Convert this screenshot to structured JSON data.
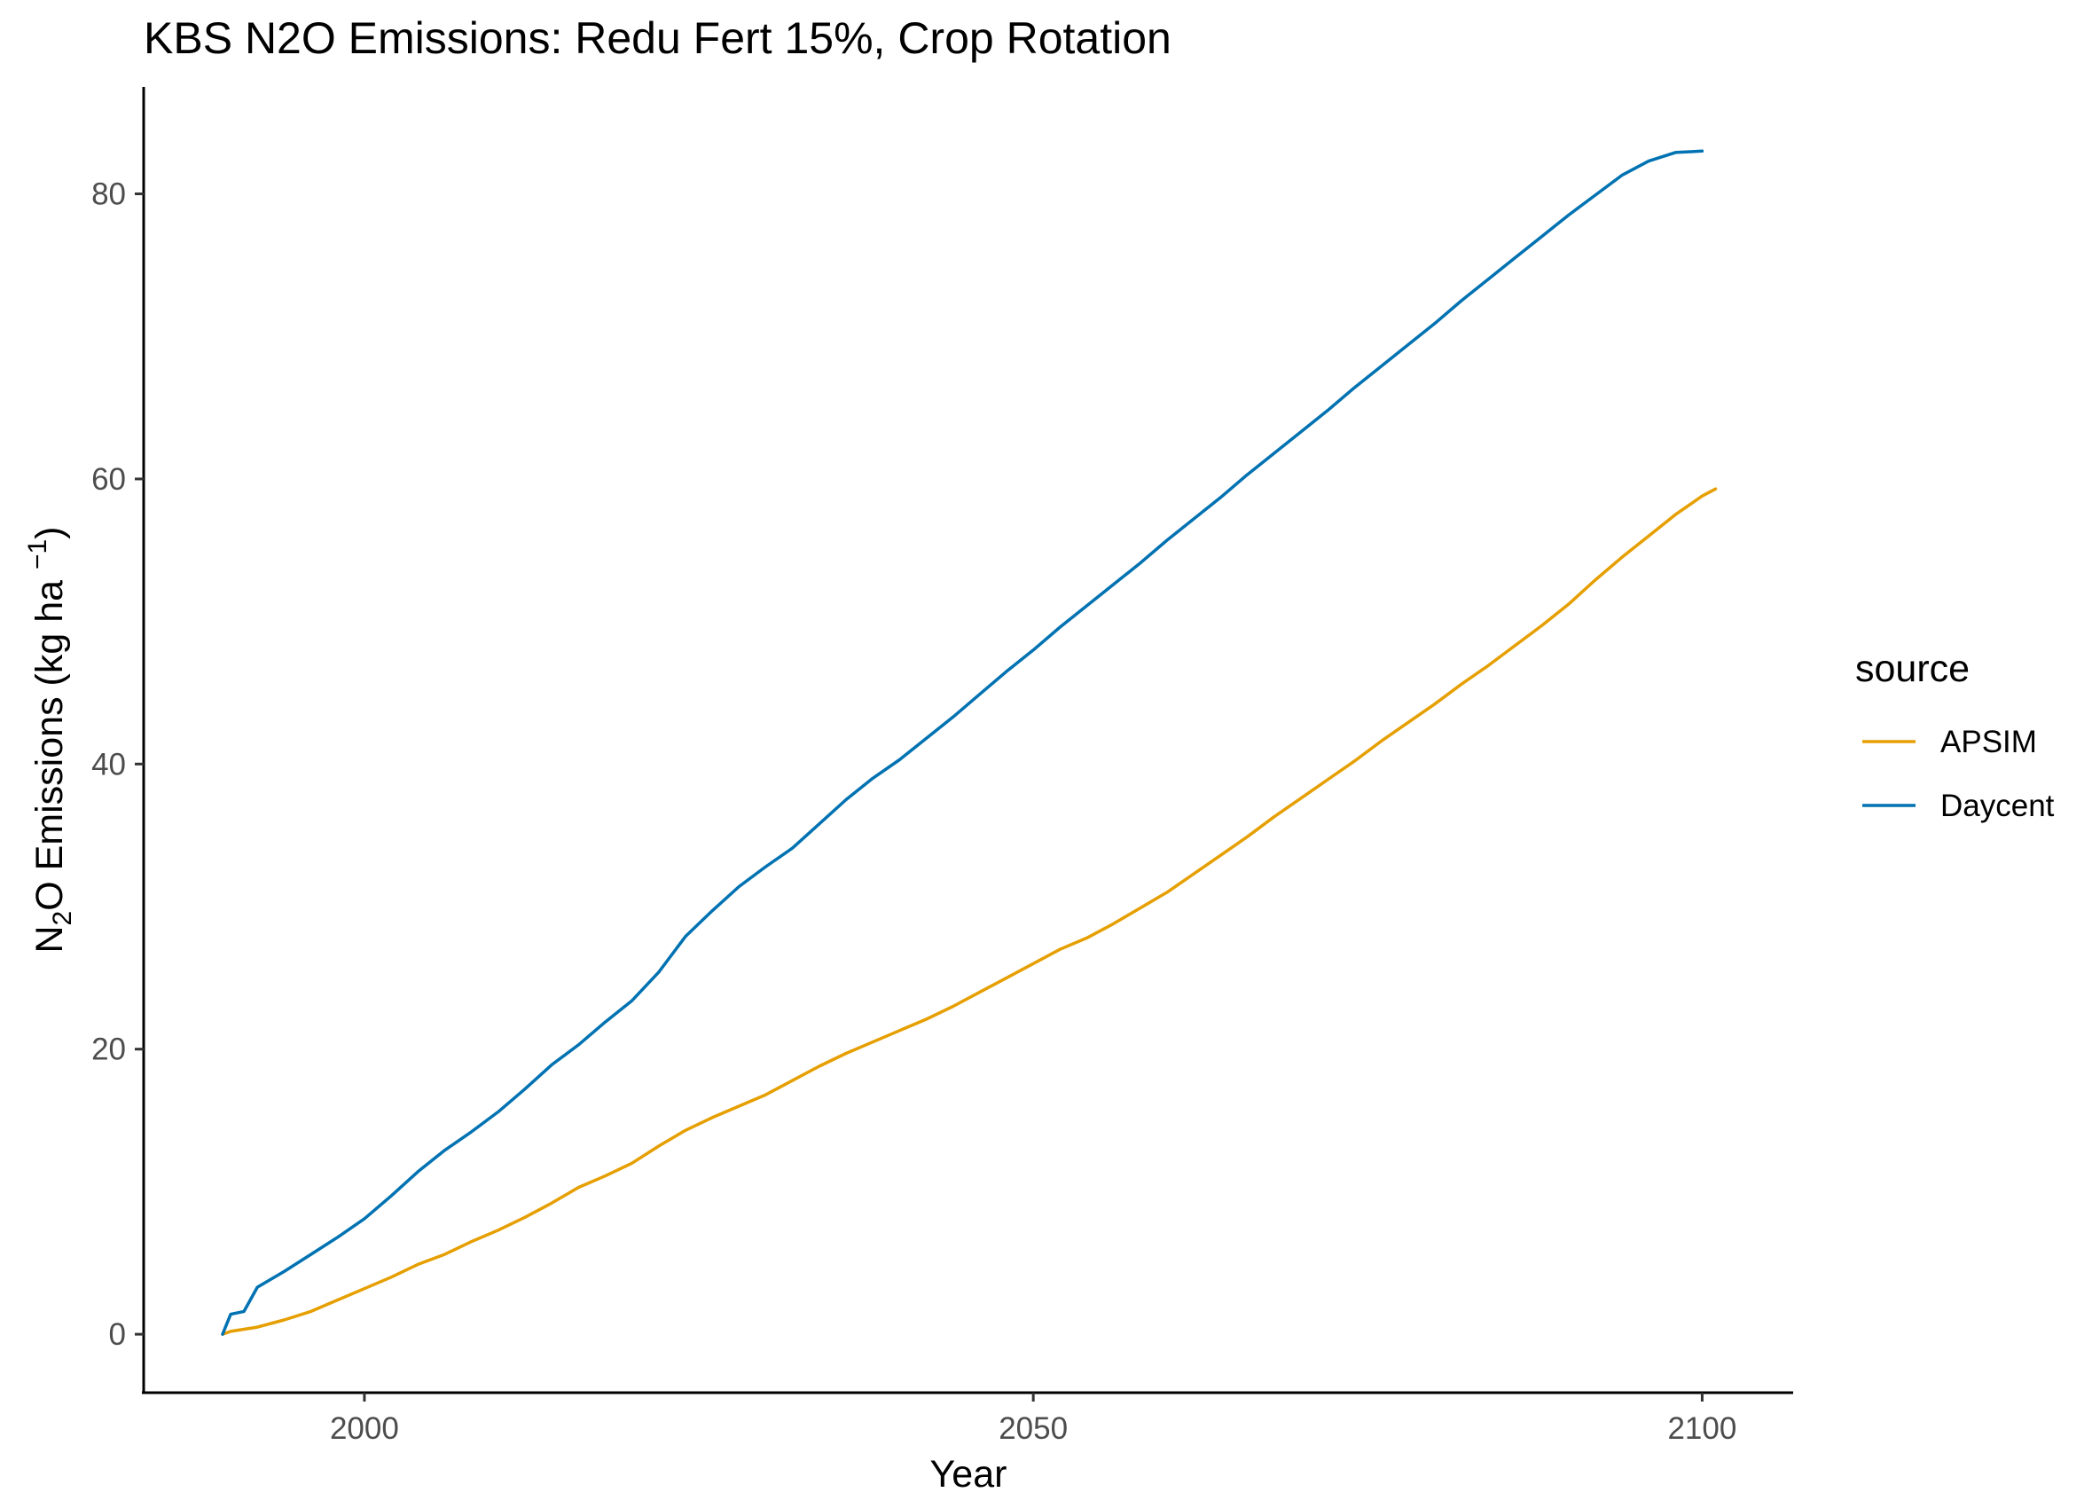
{
  "chart_data": {
    "type": "line",
    "title": "KBS N2O Emissions:  Redu Fert 15%, Crop Rotation",
    "xlabel": "Year",
    "ylabel": {
      "prefix": "N",
      "subscript": "2",
      "middle": "O Emissions (kg ha ",
      "superscript": "−1",
      "suffix": ")"
    },
    "xlim": [
      1983.5,
      2106.8
    ],
    "ylim": [
      -4.1,
      87.5
    ],
    "x_ticks": [
      2000,
      2050,
      2100
    ],
    "x_tick_labels": [
      "2000",
      "2050",
      "2100"
    ],
    "y_ticks": [
      0,
      20,
      40,
      60,
      80
    ],
    "y_tick_labels": [
      "0",
      "20",
      "40",
      "60",
      "80"
    ],
    "grid": false,
    "legend": {
      "title": "source",
      "position": "right"
    },
    "series": [
      {
        "name": "APSIM",
        "color": "#E69F00",
        "x": [
          1989.4,
          1990,
          1992,
          1994,
          1996,
          1998,
          2000,
          2002,
          2004,
          2006,
          2008,
          2010,
          2012,
          2014,
          2016,
          2018,
          2020,
          2022,
          2024,
          2026,
          2028,
          2030,
          2032,
          2034,
          2036,
          2038,
          2040,
          2042,
          2044,
          2046,
          2048,
          2050,
          2052,
          2054,
          2056,
          2058,
          2060,
          2062,
          2064,
          2066,
          2068,
          2070,
          2072,
          2074,
          2076,
          2078,
          2080,
          2082,
          2084,
          2086,
          2088,
          2090,
          2092,
          2094,
          2096,
          2098,
          2100,
          2101
        ],
        "values": [
          0.0,
          0.2,
          0.5,
          1.0,
          1.6,
          2.4,
          3.2,
          4.0,
          4.9,
          5.6,
          6.5,
          7.3,
          8.2,
          9.2,
          10.3,
          11.1,
          12.0,
          13.2,
          14.3,
          15.2,
          16.0,
          16.8,
          17.8,
          18.8,
          19.7,
          20.5,
          21.3,
          22.1,
          23.0,
          24.0,
          25.0,
          26.0,
          27.0,
          27.8,
          28.8,
          29.9,
          31.0,
          32.3,
          33.6,
          34.9,
          36.3,
          37.6,
          38.9,
          40.2,
          41.6,
          42.9,
          44.2,
          45.6,
          46.9,
          48.3,
          49.7,
          51.2,
          52.9,
          54.5,
          56.0,
          57.5,
          58.8,
          59.3
        ]
      },
      {
        "name": "Daycent",
        "color": "#0072B2",
        "x": [
          1989.4,
          1990,
          1991,
          1992,
          1994,
          1996,
          1998,
          2000,
          2002,
          2004,
          2006,
          2008,
          2010,
          2012,
          2014,
          2016,
          2018,
          2020,
          2022,
          2024,
          2026,
          2028,
          2030,
          2032,
          2034,
          2036,
          2038,
          2040,
          2042,
          2044,
          2046,
          2048,
          2050,
          2052,
          2054,
          2056,
          2058,
          2060,
          2062,
          2064,
          2066,
          2068,
          2070,
          2072,
          2074,
          2076,
          2078,
          2080,
          2082,
          2084,
          2086,
          2088,
          2090,
          2092,
          2094,
          2096,
          2098,
          2100
        ],
        "values": [
          0.0,
          1.4,
          1.6,
          3.3,
          4.4,
          5.6,
          6.8,
          8.1,
          9.7,
          11.4,
          12.9,
          14.2,
          15.6,
          17.2,
          18.9,
          20.3,
          21.9,
          23.4,
          25.4,
          27.9,
          29.7,
          31.4,
          32.8,
          34.1,
          35.8,
          37.5,
          39.0,
          40.3,
          41.8,
          43.3,
          44.9,
          46.5,
          48.0,
          49.6,
          51.1,
          52.6,
          54.1,
          55.7,
          57.2,
          58.7,
          60.3,
          61.8,
          63.3,
          64.8,
          66.4,
          67.9,
          69.4,
          70.9,
          72.5,
          74.0,
          75.5,
          77.0,
          78.5,
          79.9,
          81.3,
          82.3,
          82.9,
          83.0
        ]
      }
    ]
  }
}
